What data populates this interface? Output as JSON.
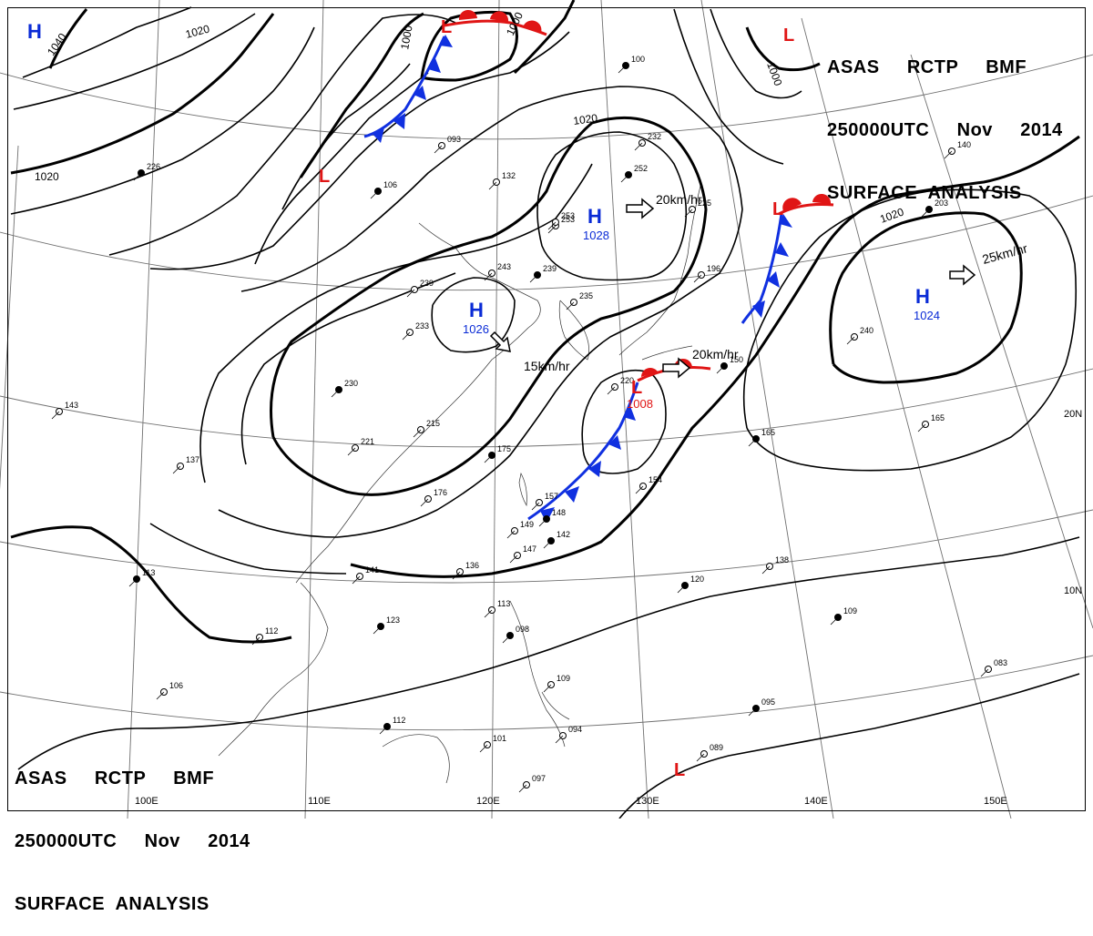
{
  "header": {
    "line1": "ASAS     RCTP     BMF",
    "line2": "250000UTC     Nov     2014",
    "line3": "SURFACE  ANALYSIS"
  },
  "colors": {
    "high": "#0a2bd6",
    "low": "#e01515",
    "cold_front": "#1030e0",
    "warm_front": "#e01515",
    "isobar": "#000000",
    "grid": "#707070"
  },
  "longitude_labels": [
    "100E",
    "110E",
    "120E",
    "130E",
    "140E",
    "150E"
  ],
  "latitude_labels": [
    "10N",
    "20N"
  ],
  "pressure_systems": [
    {
      "type": "H",
      "value": ""
    },
    {
      "type": "H",
      "value": "1028"
    },
    {
      "type": "H",
      "value": "1026"
    },
    {
      "type": "H",
      "value": "1024"
    },
    {
      "type": "L",
      "value": ""
    },
    {
      "type": "L",
      "value": ""
    },
    {
      "type": "L",
      "value": ""
    },
    {
      "type": "L",
      "value": ""
    },
    {
      "type": "L",
      "value": "1008"
    },
    {
      "type": "L",
      "value": ""
    }
  ],
  "motion_vectors": [
    "20km/hr",
    "15km/hr",
    "20km/hr",
    "25km/hr"
  ],
  "isobar_labels": [
    "1040",
    "1020",
    "1000",
    "1000",
    "1000",
    "1020",
    "1020"
  ],
  "station_values": [
    "226",
    "253",
    "235",
    "106",
    "093",
    "132",
    "252",
    "253",
    "243",
    "239",
    "239",
    "233",
    "230",
    "215",
    "221",
    "175",
    "176",
    "157",
    "148",
    "149",
    "147",
    "142",
    "136",
    "141",
    "123",
    "112",
    "113",
    "098",
    "109",
    "101",
    "112",
    "097",
    "094",
    "120",
    "138",
    "154",
    "165",
    "165",
    "240",
    "109",
    "083",
    "089",
    "095",
    "143",
    "137",
    "113",
    "106",
    "140",
    "203",
    "196",
    "225",
    "100",
    "232",
    "220",
    "150"
  ]
}
